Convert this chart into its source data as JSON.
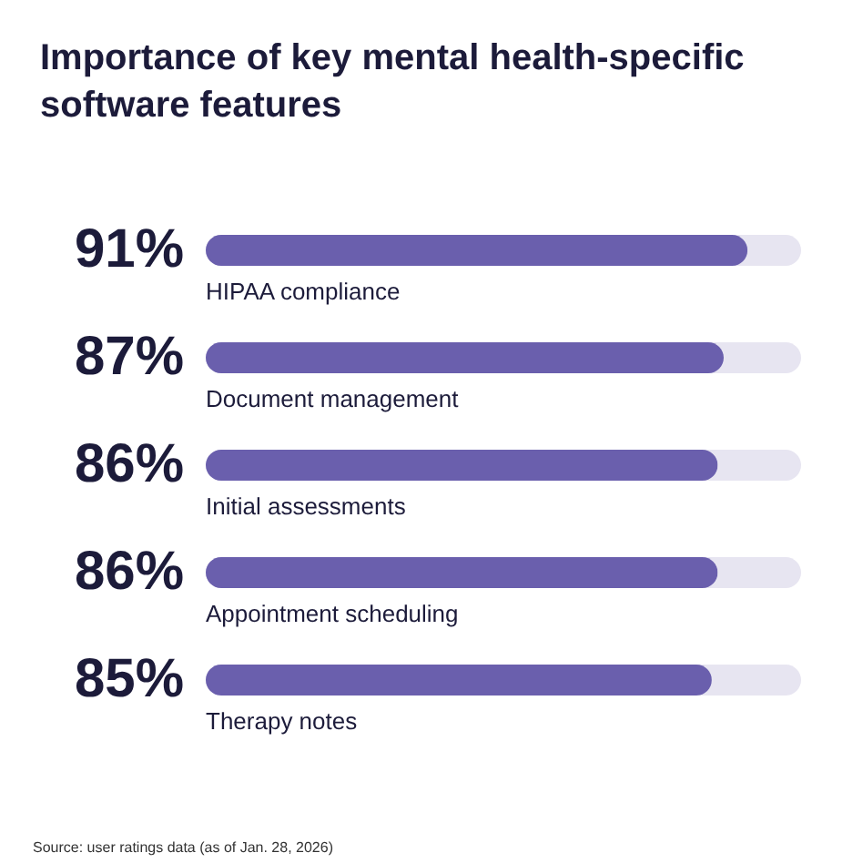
{
  "chart_data": {
    "type": "bar",
    "orientation": "horizontal",
    "title": "Importance of key mental health-specific software features",
    "categories": [
      "HIPAA compliance",
      "Document management",
      "Initial assessments",
      "Appointment scheduling",
      "Therapy notes"
    ],
    "values": [
      91,
      87,
      86,
      86,
      85
    ],
    "value_labels": [
      "91%",
      "87%",
      "86%",
      "86%",
      "85%"
    ],
    "color": "#6a5fad",
    "xlim": [
      0,
      100
    ],
    "tick_labels": false,
    "annotations": [
      "Source: user ratings data (as of Jan. 28, 2026)"
    ]
  }
}
